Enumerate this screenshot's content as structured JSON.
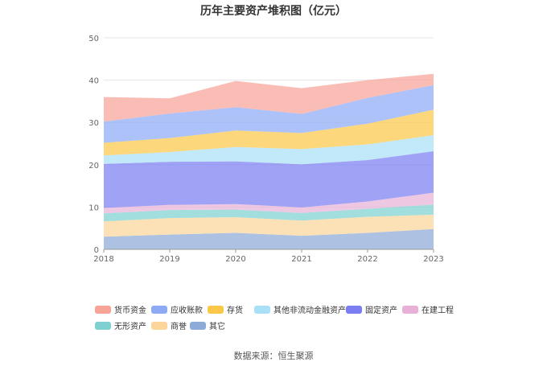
{
  "chart_data": {
    "type": "area",
    "stacked": true,
    "title": "历年主要资产堆积图（亿元）",
    "xlabel": "",
    "ylabel": "",
    "categories": [
      "2018",
      "2019",
      "2020",
      "2021",
      "2022",
      "2023"
    ],
    "ylim": [
      0,
      50
    ],
    "yticks": [
      0,
      10,
      20,
      30,
      40,
      50
    ],
    "grid": true,
    "legend_position": "bottom",
    "series": [
      {
        "name": "其它",
        "color": "#8eaad8",
        "values": [
          3.0,
          3.5,
          3.9,
          3.2,
          3.9,
          4.8
        ]
      },
      {
        "name": "商誉",
        "color": "#fcd59a",
        "values": [
          3.6,
          3.9,
          3.7,
          3.6,
          3.8,
          3.4
        ]
      },
      {
        "name": "无形资产",
        "color": "#7fd1d1",
        "values": [
          1.9,
          1.9,
          1.8,
          1.8,
          1.9,
          2.4
        ]
      },
      {
        "name": "在建工程",
        "color": "#e7b1d7",
        "values": [
          1.3,
          1.2,
          1.3,
          1.3,
          1.7,
          2.8
        ]
      },
      {
        "name": "固定资产",
        "color": "#7b7ef1",
        "values": [
          10.4,
          10.2,
          10.1,
          10.2,
          9.8,
          9.8
        ]
      },
      {
        "name": "其他非流动金融资产",
        "color": "#a9e0f8",
        "values": [
          2.0,
          2.3,
          3.4,
          3.6,
          3.7,
          3.8
        ]
      },
      {
        "name": "存货",
        "color": "#fcc849",
        "values": [
          3.0,
          3.3,
          3.9,
          3.8,
          4.9,
          6.0
        ]
      },
      {
        "name": "应收账款",
        "color": "#8eaaf5",
        "values": [
          5.0,
          5.8,
          5.5,
          4.5,
          6.1,
          5.8
        ]
      },
      {
        "name": "货币资金",
        "color": "#f8a398",
        "values": [
          5.8,
          3.6,
          6.2,
          6.1,
          4.2,
          2.7
        ]
      }
    ],
    "legend_order": [
      "货币资金",
      "应收账款",
      "存货",
      "其他非流动金融资产",
      "固定资产",
      "在建工程",
      "无形资产",
      "商誉",
      "其它"
    ]
  },
  "source_text": "数据来源：恒生聚源"
}
